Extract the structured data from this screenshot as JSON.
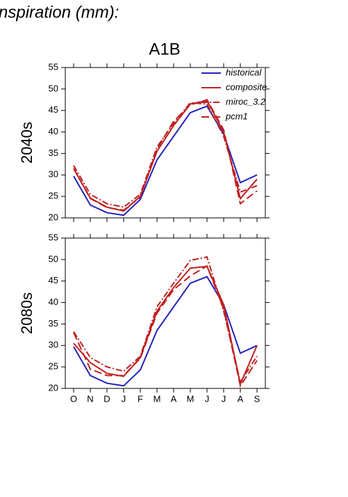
{
  "title": "nspiration (mm):",
  "subtitle": "A1B",
  "chart_data": [
    {
      "type": "line",
      "ylabel": "2040s",
      "ylim": [
        20,
        55
      ],
      "yticks": [
        20,
        25,
        30,
        35,
        40,
        45,
        50,
        55
      ],
      "legend": "upper right",
      "series": [
        {
          "name": "historical",
          "color": "#2222bb",
          "dash": "solid",
          "values": [
            29.7,
            23,
            21.2,
            20.6,
            24.3,
            33.5,
            39,
            44.5,
            46,
            39.5,
            28.2,
            30
          ]
        },
        {
          "name": "composite",
          "color": "#c02020",
          "dash": "solid",
          "values": [
            31.5,
            24.6,
            22.5,
            21.6,
            25,
            35.5,
            41.5,
            46.5,
            47.3,
            40,
            24.5,
            29
          ]
        },
        {
          "name": "miroc_3.2",
          "color": "#c02020",
          "dash": "dashdot",
          "values": [
            32.2,
            25.5,
            23.3,
            22.5,
            25.5,
            36.5,
            42,
            46.8,
            46.5,
            39,
            26,
            27.5
          ]
        },
        {
          "name": "pcm1",
          "color": "#c02020",
          "dash": "dashed",
          "values": [
            31.5,
            24.5,
            22.4,
            21.8,
            24.8,
            36,
            42.5,
            46.3,
            47.5,
            40.5,
            23.3,
            26.3
          ]
        }
      ]
    },
    {
      "type": "line",
      "ylabel": "2080s",
      "ylim": [
        20,
        55
      ],
      "yticks": [
        20,
        25,
        30,
        35,
        40,
        45,
        50,
        55
      ],
      "categories": [
        "O",
        "N",
        "D",
        "J",
        "F",
        "M",
        "A",
        "M",
        "J",
        "J",
        "A",
        "S"
      ],
      "series": [
        {
          "color": "#2222bb",
          "dash": "solid",
          "values": [
            29.7,
            23,
            21.2,
            20.6,
            24.3,
            33.5,
            39,
            44.5,
            46,
            39.5,
            28.2,
            30
          ]
        },
        {
          "color": "#c02020",
          "dash": "solid",
          "values": [
            30.5,
            26,
            23.5,
            22.8,
            27.2,
            38,
            43.5,
            48,
            48.4,
            39.5,
            21,
            30
          ]
        },
        {
          "color": "#c02020",
          "dash": "dashdot",
          "values": [
            33.2,
            27.2,
            25,
            24,
            27.5,
            39,
            44.5,
            49.8,
            50.6,
            38,
            21.5,
            27.5
          ]
        },
        {
          "color": "#c02020",
          "dash": "dashed",
          "values": [
            33,
            24.5,
            23,
            23,
            27,
            37.5,
            43,
            46.2,
            48.5,
            38.5,
            20.6,
            26.5
          ]
        }
      ]
    }
  ]
}
